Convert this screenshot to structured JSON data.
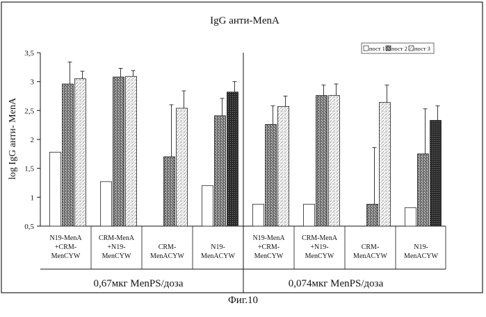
{
  "chart_data": {
    "type": "bar",
    "title": "IgG анти-MenA",
    "ylabel": "log IgG анти- MenA",
    "xlabel": "",
    "ylim": [
      0.5,
      3.5
    ],
    "yticks": [
      "0,5",
      "1",
      "1,5",
      "2",
      "2,5",
      "3",
      "3,5"
    ],
    "legend": {
      "position": "top-right",
      "entries": [
        "пост 1",
        "пост 2",
        "пост 3"
      ]
    },
    "series": [
      {
        "name": "пост 1",
        "pattern": "white",
        "values": [
          1.78,
          1.27,
          null,
          1.2,
          0.88,
          0.88,
          null,
          0.82
        ],
        "errors": [
          null,
          null,
          null,
          null,
          null,
          null,
          null,
          null
        ]
      },
      {
        "name": "пост 2",
        "pattern": "dense-speckle",
        "values": [
          2.96,
          3.08,
          1.7,
          2.41,
          2.26,
          2.76,
          0.88,
          1.75
        ],
        "errors": [
          0.38,
          0.15,
          0.9,
          0.3,
          0.32,
          0.18,
          0.98,
          0.78
        ]
      },
      {
        "name": "пост 3",
        "pattern": "light-hatch",
        "values": [
          3.05,
          3.09,
          2.54,
          2.82,
          2.57,
          2.76,
          2.64,
          2.33
        ],
        "errors": [
          0.13,
          0.1,
          0.3,
          0.18,
          0.18,
          0.2,
          0.3,
          0.25
        ]
      }
    ],
    "categories": [
      [
        "N19-MenA",
        "+CRM-",
        "MenCYW"
      ],
      [
        "CRM-MenA",
        "+N19-",
        "MenCYW"
      ],
      [
        "CRM-",
        "MenACYW"
      ],
      [
        "N19-",
        "MenACYW"
      ],
      [
        "N19-MenA",
        "+CRM-",
        "MenCYW"
      ],
      [
        "CRM-MenA",
        "+N19-",
        "MenCYW"
      ],
      [
        "CRM-",
        "MenACYW"
      ],
      [
        "N19-",
        "MenACYW"
      ]
    ],
    "groups": [
      "0,67мкг MenPS/доза",
      "0,074мкг MenPS/доза"
    ],
    "figure_caption": "Фиг.10"
  }
}
